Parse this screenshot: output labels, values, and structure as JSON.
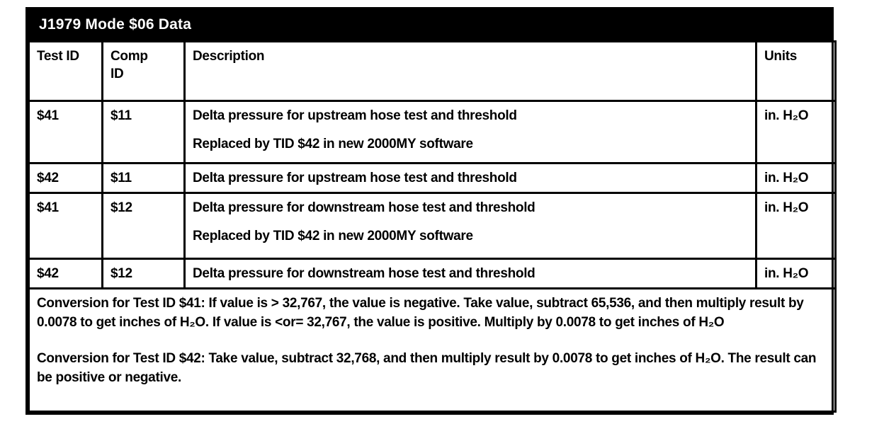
{
  "title_bar": {
    "title": "J1979 Mode $06 Data"
  },
  "table": {
    "headers": {
      "test_id": "Test ID",
      "comp_id": "Comp ID",
      "description": "Description",
      "units": "Units"
    },
    "rows": [
      {
        "test_id": "$41",
        "comp_id": "$11",
        "description": "Delta pressure for upstream hose test and threshold",
        "description_note": "Replaced by TID $42 in new 2000MY software",
        "units": "in. H₂O"
      },
      {
        "test_id": "$42",
        "comp_id": "$11",
        "description": "Delta pressure for upstream hose test and threshold",
        "units": "in. H₂O"
      },
      {
        "test_id": "$41",
        "comp_id": "$12",
        "description": "Delta pressure for downstream hose test and threshold",
        "description_note": "Replaced by TID $42 in new 2000MY software",
        "units": "in. H₂O"
      },
      {
        "test_id": "$42",
        "comp_id": "$12",
        "description": "Delta pressure for downstream hose test and threshold",
        "units": "in. H₂O"
      }
    ],
    "notes": [
      "Conversion for Test ID $41: If value is > 32,767, the value is negative. Take value, subtract 65,536, and then multiply result by 0.0078 to get inches of H₂O. If value is <or= 32,767, the value is positive. Multiply by 0.0078 to get inches of H₂O",
      "Conversion for Test ID $42: Take value, subtract 32,768, and then multiply result by 0.0078 to get inches of H₂O. The result can be positive or negative."
    ]
  }
}
